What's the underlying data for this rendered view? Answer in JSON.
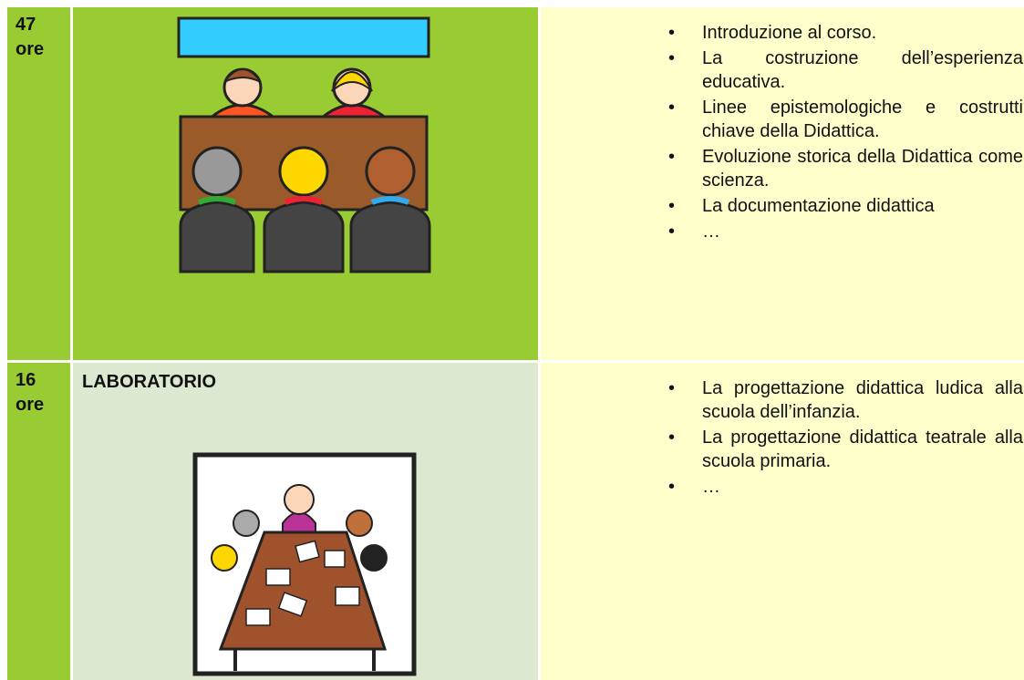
{
  "rows": [
    {
      "hours": "47",
      "unit": "ore",
      "items": [
        "Introduzione al corso.",
        "La costruzione dell’esperienza educativa.",
        "Linee epistemologiche e costrutti chiave della Didattica.",
        "Evoluzione storica della Didattica come scienza.",
        "La documentazione didattica",
        "…"
      ]
    },
    {
      "hours": "16",
      "unit": "ore",
      "label": "LABORATORIO",
      "items": [
        "La progettazione didattica ludica alla scuola dell’infanzia.",
        "La progettazione didattica teatrale alla scuola primaria.",
        "…"
      ]
    }
  ]
}
